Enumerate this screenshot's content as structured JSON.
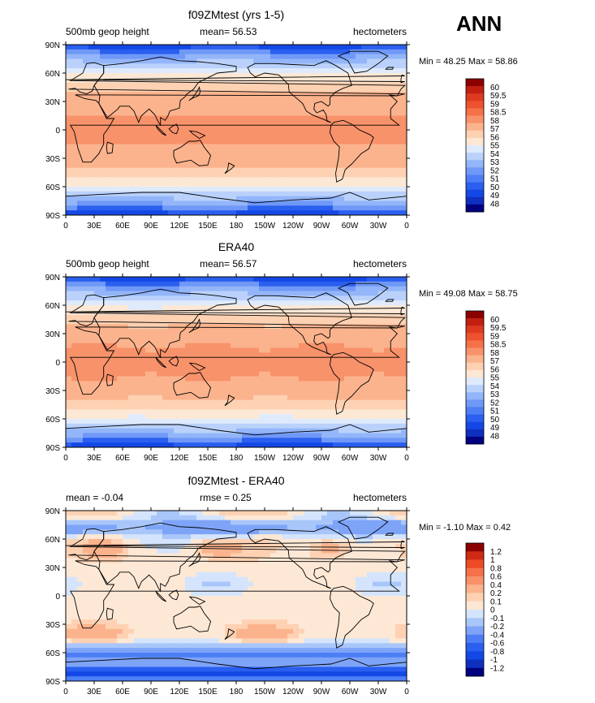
{
  "season": "ANN",
  "palettes": {
    "abs": [
      "#000080",
      "#0f2fbf",
      "#1448e6",
      "#2a5fef",
      "#4d7ef5",
      "#6f98f7",
      "#93b5f9",
      "#bad1fb",
      "#dfeafc",
      "#fde8d5",
      "#fdd1b2",
      "#fbb38d",
      "#f8926a",
      "#f57249",
      "#ef5230",
      "#de3a1f",
      "#c21f10",
      "#8b0000"
    ],
    "diff": [
      "#000080",
      "#0f2fbf",
      "#1448e6",
      "#2a5fef",
      "#4d7ef5",
      "#7ea4f8",
      "#a9c6fa",
      "#d4e4fc",
      "#fde8d5",
      "#fdd1b2",
      "#fbb38d",
      "#f8926a",
      "#f57249",
      "#ee4a26",
      "#cf2a14",
      "#8b0000"
    ]
  },
  "chart_data": [
    {
      "type": "heatmap",
      "title": "f09ZMtest (yrs 1-5)",
      "left_label": "500mb geop height",
      "center_label": "mean=   56.53",
      "right_label": "hectometers",
      "minmax": "Min =   48.25  Max =   58.86",
      "min": 48.25,
      "max": 58.86,
      "mean": 56.53,
      "xticks": [
        "0",
        "30E",
        "60E",
        "90E",
        "120E",
        "150E",
        "180",
        "150W",
        "120W",
        "90W",
        "60W",
        "30W",
        "0"
      ],
      "yticks": [
        "90N",
        "60N",
        "30N",
        "0",
        "30S",
        "60S",
        "90S"
      ],
      "colorbar_labels": [
        "60",
        "59.5",
        "59",
        "58.5",
        "58",
        "57",
        "56",
        "55",
        "54",
        "53",
        "52",
        "51",
        "50",
        "49",
        "48"
      ],
      "palette": "abs",
      "units": "hectometers"
    },
    {
      "type": "heatmap",
      "title": "ERA40",
      "left_label": "500mb geop height",
      "center_label": "mean=   56.57",
      "right_label": "hectometers",
      "minmax": "Min =   49.08  Max =   58.75",
      "min": 49.08,
      "max": 58.75,
      "mean": 56.57,
      "xticks": [
        "0",
        "30E",
        "60E",
        "90E",
        "120E",
        "150E",
        "180",
        "150W",
        "120W",
        "90W",
        "60W",
        "30W",
        "0"
      ],
      "yticks": [
        "90N",
        "60N",
        "30N",
        "0",
        "30S",
        "60S",
        "90S"
      ],
      "colorbar_labels": [
        "60",
        "59.5",
        "59",
        "58.5",
        "58",
        "57",
        "56",
        "55",
        "54",
        "53",
        "52",
        "51",
        "50",
        "49",
        "48"
      ],
      "palette": "abs",
      "units": "hectometers"
    },
    {
      "type": "heatmap",
      "title": "f09ZMtest - ERA40",
      "left_label": "mean =    -0.04",
      "center_label": "rmse =      0.25",
      "right_label": "hectometers",
      "minmax": "Min =   -1.10  Max =     0.42",
      "min": -1.1,
      "max": 0.42,
      "mean": -0.04,
      "rmse": 0.25,
      "xticks": [
        "0",
        "30E",
        "60E",
        "90E",
        "120E",
        "150E",
        "180",
        "150W",
        "120W",
        "90W",
        "60W",
        "30W",
        "0"
      ],
      "yticks": [
        "90N",
        "60N",
        "30N",
        "0",
        "30S",
        "60S",
        "90S"
      ],
      "colorbar_labels": [
        "1.2",
        "1",
        "0.8",
        "0.6",
        "0.4",
        "0.2",
        "0.1",
        "0",
        "-0.1",
        "-0.2",
        "-0.4",
        "-0.6",
        "-0.8",
        "-1",
        "-1.2"
      ],
      "palette": "diff",
      "units": "hectometers"
    }
  ]
}
